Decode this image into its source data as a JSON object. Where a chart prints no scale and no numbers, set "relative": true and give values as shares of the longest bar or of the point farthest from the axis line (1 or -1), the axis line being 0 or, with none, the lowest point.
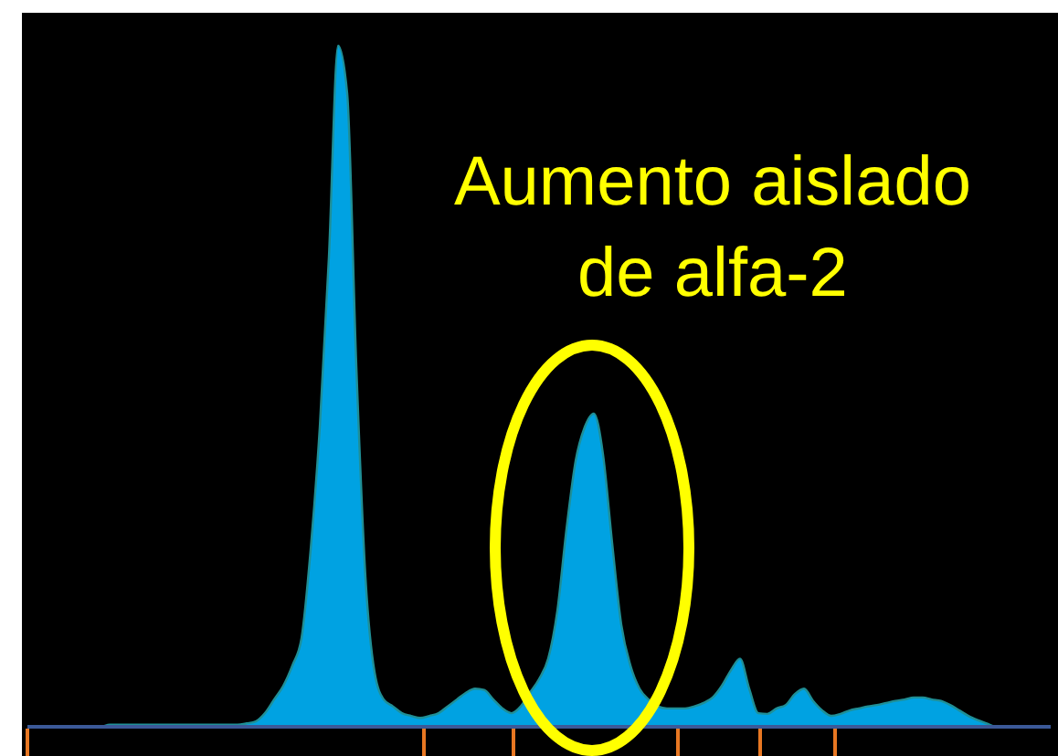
{
  "chart_data": {
    "type": "area",
    "relative": true,
    "color": "#00a2e2",
    "categories": [
      null,
      null,
      null,
      null,
      null,
      null,
      null,
      null,
      null,
      null,
      null,
      null,
      null,
      null,
      null,
      null,
      null,
      null,
      null,
      null,
      null,
      null,
      null,
      null,
      null,
      null,
      null,
      null,
      null,
      null,
      null,
      null,
      null,
      null,
      null,
      null,
      null,
      null,
      null,
      null,
      null,
      null,
      null,
      null,
      null,
      null,
      null,
      null,
      null,
      null,
      null,
      null,
      null,
      null,
      null,
      null,
      null,
      null,
      null,
      null,
      null,
      null,
      null,
      null,
      null,
      null,
      null,
      null,
      null,
      null,
      null,
      null,
      null,
      null,
      null,
      null,
      null,
      null,
      null,
      null,
      null,
      null,
      null,
      null,
      null,
      null,
      null,
      null,
      null,
      null,
      null,
      null,
      null,
      null,
      null,
      null,
      null,
      null,
      null,
      null,
      null,
      null,
      null,
      null,
      null,
      null,
      null,
      null,
      null,
      null,
      null,
      null,
      null
    ],
    "values": [
      0,
      0,
      0,
      0,
      0,
      0,
      0,
      0,
      0,
      0.003,
      0.003,
      0.003,
      0.003,
      0.003,
      0.003,
      0.003,
      0.003,
      0.003,
      0.003,
      0.003,
      0.003,
      0.003,
      0.003,
      0.003,
      0.005,
      0.008,
      0.02,
      0.04,
      0.06,
      0.09,
      0.13,
      0.26,
      0.44,
      0.69,
      1,
      0.93,
      0.53,
      0.22,
      0.08,
      0.04,
      0.03,
      0.02,
      0.016,
      0.013,
      0.016,
      0.02,
      0.03,
      0.04,
      0.05,
      0.056,
      0.054,
      0.04,
      0.027,
      0.02,
      0.03,
      0.05,
      0.07,
      0.1,
      0.17,
      0.29,
      0.39,
      0.44,
      0.46,
      0.4,
      0.27,
      0.15,
      0.09,
      0.056,
      0.04,
      0.03,
      0.027,
      0.027,
      0.027,
      0.03,
      0.035,
      0.043,
      0.06,
      0.083,
      0.1,
      0.056,
      0.02,
      0.019,
      0.027,
      0.032,
      0.048,
      0.056,
      0.038,
      0.024,
      0.016,
      0.019,
      0.024,
      0.027,
      0.03,
      0.032,
      0.035,
      0.038,
      0.04,
      0.043,
      0.043,
      0.04,
      0.038,
      0.032,
      0.024,
      0.016,
      0.01,
      0.005,
      0,
      0,
      0,
      0,
      0,
      0,
      0
    ],
    "annotations": [
      "Aumento aislado de alfa-2"
    ]
  }
}
